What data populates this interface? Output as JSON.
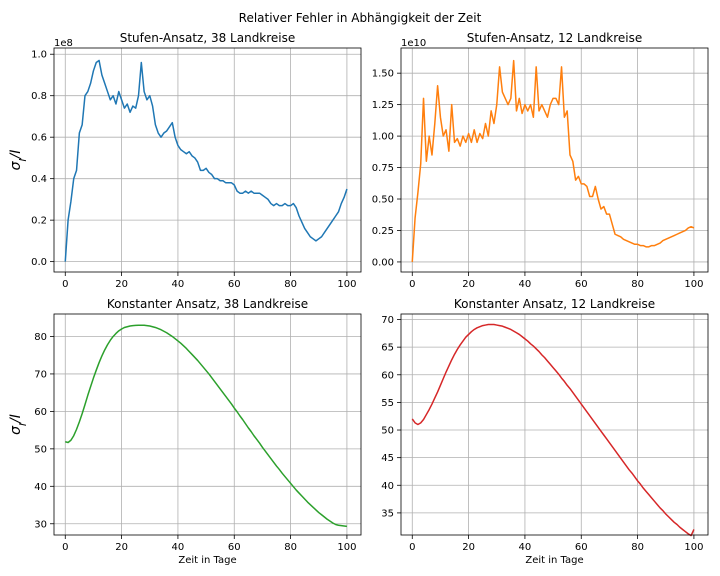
{
  "suptitle": "Relativer Fehler in Abhängigkeit der Zeit",
  "chart_data": [
    {
      "type": "line",
      "title": "Stufen-Ansatz, 38 Landkreise",
      "xlabel": "",
      "ylabel": "σ_I/I",
      "offset_text": "1e8",
      "xlim": [
        -4,
        105
      ],
      "ylim": [
        -0.05,
        1.03
      ],
      "xticks": [
        0,
        20,
        40,
        60,
        80,
        100
      ],
      "yticks": [
        0.0,
        0.2,
        0.4,
        0.6,
        0.8,
        1.0
      ],
      "ytick_labels": [
        "0.0",
        "0.2",
        "0.4",
        "0.6",
        "0.8",
        "1.0"
      ],
      "grid": true,
      "color": "#1f77b4",
      "series": [
        {
          "x": [
            0,
            1,
            2,
            3,
            4,
            5,
            6,
            7,
            8,
            9,
            10,
            11,
            12,
            13,
            14,
            15,
            16,
            17,
            18,
            19,
            20,
            21,
            22,
            23,
            24,
            25,
            26,
            27,
            28,
            29,
            30,
            31,
            32,
            33,
            34,
            35,
            36,
            37,
            38,
            39,
            40,
            41,
            42,
            43,
            44,
            45,
            46,
            47,
            48,
            49,
            50,
            51,
            52,
            53,
            54,
            55,
            56,
            57,
            58,
            59,
            60,
            61,
            62,
            63,
            64,
            65,
            66,
            67,
            68,
            69,
            70,
            71,
            72,
            73,
            74,
            75,
            76,
            77,
            78,
            79,
            80,
            81,
            82,
            83,
            84,
            85,
            86,
            87,
            88,
            89,
            90,
            91,
            92,
            93,
            94,
            95,
            96,
            97,
            98,
            99,
            100
          ],
          "y": [
            0.0,
            0.2,
            0.29,
            0.4,
            0.44,
            0.62,
            0.66,
            0.8,
            0.82,
            0.86,
            0.92,
            0.96,
            0.97,
            0.9,
            0.86,
            0.82,
            0.78,
            0.8,
            0.76,
            0.82,
            0.78,
            0.74,
            0.76,
            0.72,
            0.75,
            0.74,
            0.8,
            0.96,
            0.82,
            0.78,
            0.8,
            0.75,
            0.66,
            0.62,
            0.6,
            0.62,
            0.63,
            0.65,
            0.67,
            0.6,
            0.56,
            0.54,
            0.53,
            0.52,
            0.53,
            0.51,
            0.5,
            0.48,
            0.44,
            0.44,
            0.45,
            0.43,
            0.42,
            0.4,
            0.4,
            0.39,
            0.39,
            0.38,
            0.38,
            0.38,
            0.37,
            0.34,
            0.33,
            0.33,
            0.34,
            0.33,
            0.34,
            0.33,
            0.33,
            0.33,
            0.32,
            0.31,
            0.3,
            0.28,
            0.27,
            0.28,
            0.27,
            0.27,
            0.28,
            0.27,
            0.27,
            0.28,
            0.26,
            0.22,
            0.19,
            0.16,
            0.14,
            0.12,
            0.11,
            0.1,
            0.11,
            0.12,
            0.14,
            0.16,
            0.18,
            0.2,
            0.22,
            0.24,
            0.28,
            0.31,
            0.35
          ]
        }
      ]
    },
    {
      "type": "line",
      "title": "Stufen-Ansatz, 12 Landkreise",
      "xlabel": "",
      "ylabel": "",
      "offset_text": "1e10",
      "xlim": [
        -4,
        105
      ],
      "ylim": [
        -0.08,
        1.7
      ],
      "xticks": [
        0,
        20,
        40,
        60,
        80,
        100
      ],
      "yticks": [
        0.0,
        0.25,
        0.5,
        0.75,
        1.0,
        1.25,
        1.5
      ],
      "ytick_labels": [
        "0.00",
        "0.25",
        "0.50",
        "0.75",
        "1.00",
        "1.25",
        "1.50"
      ],
      "grid": true,
      "color": "#ff7f0e",
      "series": [
        {
          "x": [
            0,
            1,
            2,
            3,
            4,
            5,
            6,
            7,
            8,
            9,
            10,
            11,
            12,
            13,
            14,
            15,
            16,
            17,
            18,
            19,
            20,
            21,
            22,
            23,
            24,
            25,
            26,
            27,
            28,
            29,
            30,
            31,
            32,
            33,
            34,
            35,
            36,
            37,
            38,
            39,
            40,
            41,
            42,
            43,
            44,
            45,
            46,
            47,
            48,
            49,
            50,
            51,
            52,
            53,
            54,
            55,
            56,
            57,
            58,
            59,
            60,
            61,
            62,
            63,
            64,
            65,
            66,
            67,
            68,
            69,
            70,
            71,
            72,
            73,
            74,
            75,
            76,
            77,
            78,
            79,
            80,
            81,
            82,
            83,
            84,
            85,
            86,
            87,
            88,
            89,
            90,
            91,
            92,
            93,
            94,
            95,
            96,
            97,
            98,
            99,
            100
          ],
          "y": [
            0.0,
            0.35,
            0.55,
            0.78,
            1.3,
            0.8,
            1.0,
            0.85,
            1.1,
            1.4,
            1.15,
            1.0,
            1.05,
            0.88,
            1.25,
            0.95,
            0.98,
            0.92,
            1.0,
            0.95,
            1.02,
            0.95,
            1.05,
            0.95,
            1.02,
            0.98,
            1.1,
            1.0,
            1.2,
            1.1,
            1.25,
            1.55,
            1.35,
            1.3,
            1.25,
            1.3,
            1.6,
            1.2,
            1.3,
            1.18,
            1.25,
            1.2,
            1.25,
            1.15,
            1.55,
            1.2,
            1.25,
            1.2,
            1.15,
            1.25,
            1.3,
            1.3,
            1.25,
            1.55,
            1.15,
            1.2,
            0.85,
            0.8,
            0.65,
            0.68,
            0.62,
            0.62,
            0.6,
            0.52,
            0.52,
            0.6,
            0.5,
            0.42,
            0.44,
            0.38,
            0.38,
            0.3,
            0.22,
            0.21,
            0.2,
            0.18,
            0.17,
            0.16,
            0.15,
            0.14,
            0.14,
            0.13,
            0.13,
            0.12,
            0.12,
            0.13,
            0.13,
            0.14,
            0.15,
            0.17,
            0.18,
            0.19,
            0.2,
            0.21,
            0.22,
            0.23,
            0.24,
            0.25,
            0.27,
            0.28,
            0.27
          ]
        }
      ]
    },
    {
      "type": "line",
      "title": "Konstanter Ansatz, 38 Landkreise",
      "xlabel": "Zeit in Tage",
      "ylabel": "σ_I/I",
      "offset_text": "",
      "xlim": [
        -4,
        105
      ],
      "ylim": [
        27,
        86
      ],
      "xticks": [
        0,
        20,
        40,
        60,
        80,
        100
      ],
      "yticks": [
        30,
        40,
        50,
        60,
        70,
        80
      ],
      "ytick_labels": [
        "30",
        "40",
        "50",
        "60",
        "70",
        "80"
      ],
      "grid": true,
      "color": "#2ca02c",
      "series": [
        {
          "x": [
            0,
            1,
            2,
            3,
            4,
            5,
            6,
            7,
            8,
            9,
            10,
            11,
            12,
            13,
            14,
            15,
            16,
            17,
            18,
            19,
            20,
            21,
            22,
            23,
            24,
            25,
            26,
            27,
            28,
            29,
            30,
            31,
            32,
            33,
            34,
            35,
            36,
            37,
            38,
            39,
            40,
            41,
            42,
            43,
            44,
            45,
            46,
            47,
            48,
            49,
            50,
            51,
            52,
            53,
            54,
            55,
            56,
            57,
            58,
            59,
            60,
            61,
            62,
            63,
            64,
            65,
            66,
            67,
            68,
            69,
            70,
            71,
            72,
            73,
            74,
            75,
            76,
            77,
            78,
            79,
            80,
            81,
            82,
            83,
            84,
            85,
            86,
            87,
            88,
            89,
            90,
            91,
            92,
            93,
            94,
            95,
            96,
            97,
            98,
            99,
            100
          ],
          "y": [
            51.9,
            51.7,
            52.3,
            53.5,
            55.2,
            57.2,
            59.4,
            61.8,
            64.3,
            66.6,
            68.9,
            71.0,
            73.0,
            74.8,
            76.4,
            77.8,
            79.0,
            80.0,
            80.8,
            81.5,
            82.0,
            82.4,
            82.6,
            82.8,
            82.9,
            82.95,
            83.0,
            83.0,
            83.0,
            82.9,
            82.8,
            82.6,
            82.4,
            82.1,
            81.8,
            81.4,
            81.0,
            80.5,
            80.0,
            79.4,
            78.8,
            78.2,
            77.5,
            76.8,
            76.0,
            75.2,
            74.4,
            73.6,
            72.7,
            71.8,
            70.9,
            70.0,
            69.0,
            68.0,
            67.0,
            66.0,
            65.0,
            64.0,
            63.0,
            62.0,
            60.9,
            59.9,
            58.8,
            57.8,
            56.7,
            55.6,
            54.6,
            53.5,
            52.5,
            51.5,
            50.4,
            49.4,
            48.4,
            47.4,
            46.4,
            45.4,
            44.5,
            43.5,
            42.6,
            41.7,
            40.8,
            39.9,
            39.0,
            38.2,
            37.4,
            36.6,
            35.8,
            35.1,
            34.4,
            33.7,
            33.0,
            32.4,
            31.8,
            31.2,
            30.7,
            30.2,
            29.8,
            29.6,
            29.5,
            29.4,
            29.3
          ]
        }
      ]
    },
    {
      "type": "line",
      "title": "Konstanter Ansatz, 12 Landkreise",
      "xlabel": "Zeit in Tage",
      "ylabel": "",
      "offset_text": "",
      "xlim": [
        -4,
        105
      ],
      "ylim": [
        31,
        71
      ],
      "xticks": [
        0,
        20,
        40,
        60,
        80,
        100
      ],
      "yticks": [
        35,
        40,
        45,
        50,
        55,
        60,
        65,
        70
      ],
      "ytick_labels": [
        "35",
        "40",
        "45",
        "50",
        "55",
        "60",
        "65",
        "70"
      ],
      "grid": true,
      "color": "#d62728",
      "series": [
        {
          "x": [
            0,
            1,
            2,
            3,
            4,
            5,
            6,
            7,
            8,
            9,
            10,
            11,
            12,
            13,
            14,
            15,
            16,
            17,
            18,
            19,
            20,
            21,
            22,
            23,
            24,
            25,
            26,
            27,
            28,
            29,
            30,
            31,
            32,
            33,
            34,
            35,
            36,
            37,
            38,
            39,
            40,
            41,
            42,
            43,
            44,
            45,
            46,
            47,
            48,
            49,
            50,
            51,
            52,
            53,
            54,
            55,
            56,
            57,
            58,
            59,
            60,
            61,
            62,
            63,
            64,
            65,
            66,
            67,
            68,
            69,
            70,
            71,
            72,
            73,
            74,
            75,
            76,
            77,
            78,
            79,
            80,
            81,
            82,
            83,
            84,
            85,
            86,
            87,
            88,
            89,
            90,
            91,
            92,
            93,
            94,
            95,
            96,
            97,
            98,
            99,
            100
          ],
          "y": [
            52.0,
            51.3,
            51.0,
            51.3,
            51.9,
            52.8,
            53.7,
            54.7,
            55.8,
            56.9,
            58.1,
            59.3,
            60.5,
            61.6,
            62.7,
            63.7,
            64.6,
            65.4,
            66.1,
            66.8,
            67.3,
            67.8,
            68.2,
            68.5,
            68.7,
            68.9,
            69.0,
            69.1,
            69.1,
            69.1,
            69.0,
            68.9,
            68.8,
            68.6,
            68.4,
            68.2,
            67.9,
            67.6,
            67.3,
            66.9,
            66.5,
            66.1,
            65.6,
            65.2,
            64.7,
            64.2,
            63.6,
            63.1,
            62.5,
            61.9,
            61.3,
            60.7,
            60.1,
            59.4,
            58.8,
            58.1,
            57.5,
            56.8,
            56.1,
            55.4,
            54.7,
            54.0,
            53.3,
            52.6,
            51.9,
            51.2,
            50.5,
            49.8,
            49.1,
            48.4,
            47.7,
            47.0,
            46.3,
            45.6,
            44.9,
            44.2,
            43.5,
            42.8,
            42.2,
            41.5,
            40.8,
            40.2,
            39.5,
            38.9,
            38.3,
            37.7,
            37.1,
            36.5,
            35.9,
            35.4,
            34.8,
            34.3,
            33.8,
            33.3,
            32.9,
            32.4,
            32.0,
            31.6,
            31.2,
            30.9,
            32.0
          ]
        }
      ]
    }
  ]
}
